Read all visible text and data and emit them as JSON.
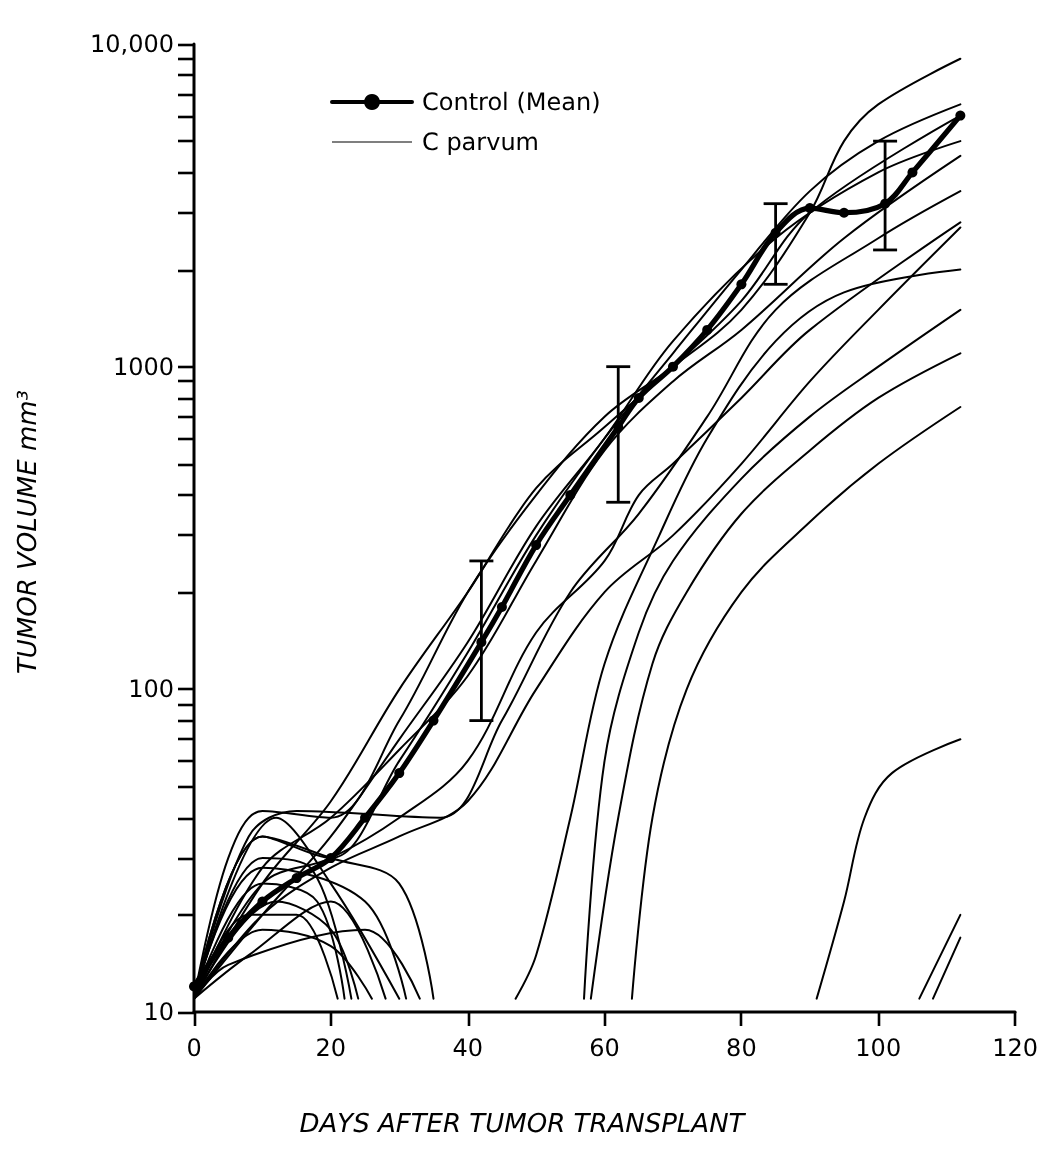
{
  "chart_data": {
    "type": "line",
    "xlabel": "DAYS AFTER TUMOR TRANSPLANT",
    "ylabel": "TUMOR VOLUME mm³",
    "log": "y",
    "grid": false,
    "legend": "top left",
    "xlim": [
      0,
      120
    ],
    "xticks": [
      0,
      20,
      40,
      60,
      80,
      100,
      120
    ],
    "ylim": [
      10,
      10000
    ],
    "yticks": [
      10,
      {
        "value": 20,
        "label": null
      },
      {
        "value": 30,
        "label": null
      },
      {
        "value": 40,
        "label": null
      },
      {
        "value": 50,
        "label": null
      },
      {
        "value": 60,
        "label": null
      },
      {
        "value": 70,
        "label": null
      },
      {
        "value": 80,
        "label": null
      },
      {
        "value": 90,
        "label": null
      },
      100,
      {
        "value": 200,
        "label": null
      },
      {
        "value": 300,
        "label": null
      },
      {
        "value": 400,
        "label": null
      },
      {
        "value": 500,
        "label": null
      },
      {
        "value": 600,
        "label": null
      },
      {
        "value": 700,
        "label": null
      },
      {
        "value": 800,
        "label": null
      },
      {
        "value": 900,
        "label": null
      },
      1000,
      {
        "value": 2000,
        "label": null
      },
      {
        "value": 3000,
        "label": null
      },
      {
        "value": 4000,
        "label": null
      },
      {
        "value": 5000,
        "label": null
      },
      {
        "value": 6000,
        "label": null
      },
      {
        "value": 7000,
        "label": null
      },
      {
        "value": 8000,
        "label": null
      },
      {
        "value": 9000,
        "label": null
      },
      {
        "value": 10000,
        "label": "10,000"
      }
    ],
    "series": [
      {
        "name": "Control (Mean)",
        "color": "#000000",
        "marker": "circle",
        "x": [
          0,
          5,
          10,
          15,
          20,
          25,
          30,
          35,
          42,
          45,
          50,
          55,
          62,
          65,
          70,
          75,
          80,
          85,
          90,
          95,
          101,
          105,
          112
        ],
        "values": [
          12,
          17,
          22,
          26,
          30,
          40,
          55,
          80,
          140,
          180,
          280,
          400,
          650,
          800,
          1000,
          1300,
          1800,
          2600,
          3100,
          3000,
          3200,
          4000,
          6000
        ],
        "errors": [
          null,
          null,
          null,
          null,
          null,
          null,
          null,
          null,
          [
            80,
            250
          ],
          null,
          null,
          null,
          [
            380,
            1000
          ],
          null,
          null,
          null,
          null,
          [
            1800,
            3200
          ],
          null,
          null,
          [
            2300,
            5000
          ],
          null,
          null
        ]
      },
      {
        "name": "C parvum",
        "color": "#000000",
        "marker": "none",
        "x": [
          0,
          5,
          10,
          20,
          30,
          40,
          50,
          60,
          70,
          80,
          90,
          95,
          100,
          112
        ],
        "values": [
          11,
          30,
          42,
          40,
          80,
          200,
          400,
          700,
          1000,
          1500,
          3000,
          5000,
          6500,
          9000
        ]
      },
      {
        "color": "#000000",
        "marker": "none",
        "x": [
          0,
          10,
          20,
          30,
          40,
          50,
          60,
          70,
          80,
          90,
          100,
          112
        ],
        "values": [
          11,
          35,
          30,
          60,
          130,
          300,
          600,
          1100,
          2000,
          3500,
          5000,
          6500
        ]
      },
      {
        "color": "#000000",
        "marker": "none",
        "x": [
          0,
          10,
          20,
          30,
          40,
          50,
          60,
          70,
          80,
          90,
          112
        ],
        "values": [
          11,
          25,
          45,
          100,
          200,
          420,
          650,
          1000,
          1600,
          3000,
          6000
        ]
      },
      {
        "color": "#000000",
        "marker": "none",
        "x": [
          0,
          10,
          20,
          30,
          40,
          50,
          60,
          70,
          85,
          100,
          112
        ],
        "values": [
          11,
          20,
          35,
          70,
          140,
          320,
          600,
          1200,
          2500,
          4000,
          5000
        ]
      },
      {
        "color": "#000000",
        "marker": "none",
        "x": [
          0,
          10,
          20,
          30,
          40,
          50,
          60,
          70,
          80,
          95,
          112
        ],
        "values": [
          11,
          28,
          40,
          65,
          110,
          250,
          550,
          900,
          1300,
          2500,
          4500
        ]
      },
      {
        "color": "#000000",
        "marker": "none",
        "x": [
          0,
          8,
          15,
          36,
          45,
          55,
          65,
          75,
          85,
          100,
          112
        ],
        "values": [
          11,
          35,
          42,
          40,
          80,
          200,
          350,
          700,
          1500,
          2500,
          3500
        ]
      },
      {
        "color": "#000000",
        "marker": "none",
        "x": [
          0,
          10,
          20,
          30,
          40,
          50,
          60,
          65,
          70,
          80,
          90,
          112
        ],
        "values": [
          11,
          25,
          30,
          40,
          60,
          150,
          250,
          400,
          500,
          800,
          1300,
          2800
        ]
      },
      {
        "color": "#000000",
        "marker": "none",
        "x": [
          0,
          10,
          20,
          30,
          40,
          50,
          60,
          70,
          80,
          90,
          100,
          112
        ],
        "values": [
          11,
          20,
          28,
          35,
          45,
          100,
          200,
          300,
          500,
          900,
          1500,
          2700
        ]
      },
      {
        "color": "#000000",
        "marker": "none",
        "x": [
          0,
          10,
          18,
          22
        ],
        "values": [
          11,
          25,
          22,
          11
        ]
      },
      {
        "color": "#000000",
        "marker": "none",
        "x": [
          0,
          8,
          15,
          21
        ],
        "values": [
          11,
          20,
          20,
          11
        ]
      },
      {
        "color": "#000000",
        "marker": "none",
        "x": [
          0,
          10,
          17,
          23
        ],
        "values": [
          11,
          30,
          28,
          11
        ]
      },
      {
        "color": "#000000",
        "marker": "none",
        "x": [
          0,
          12,
          20,
          24
        ],
        "values": [
          11,
          22,
          18,
          11
        ]
      },
      {
        "color": "#000000",
        "marker": "none",
        "x": [
          0,
          10,
          20,
          26
        ],
        "values": [
          11,
          18,
          16,
          11
        ]
      },
      {
        "color": "#000000",
        "marker": "none",
        "x": [
          0,
          8,
          20,
          28
        ],
        "values": [
          11,
          15,
          22,
          11
        ]
      },
      {
        "color": "#000000",
        "marker": "none",
        "x": [
          0,
          12,
          20,
          30
        ],
        "values": [
          11,
          40,
          25,
          11
        ]
      },
      {
        "color": "#000000",
        "marker": "none",
        "x": [
          0,
          10,
          25,
          31
        ],
        "values": [
          11,
          28,
          22,
          11
        ]
      },
      {
        "color": "#000000",
        "marker": "none",
        "x": [
          0,
          5,
          25,
          33
        ],
        "values": [
          11,
          14,
          18,
          11
        ]
      },
      {
        "color": "#000000",
        "marker": "none",
        "x": [
          0,
          10,
          20,
          30,
          35
        ],
        "values": [
          11,
          35,
          30,
          25,
          11
        ]
      },
      {
        "color": "#000000",
        "marker": "none",
        "x": [
          47,
          50,
          55,
          60,
          68,
          75,
          85,
          95,
          112
        ],
        "values": [
          11,
          15,
          40,
          120,
          300,
          600,
          1200,
          1700,
          2000
        ]
      },
      {
        "color": "#000000",
        "marker": "none",
        "x": [
          57,
          60,
          65,
          70,
          80,
          90,
          100,
          112
        ],
        "values": [
          11,
          60,
          150,
          250,
          450,
          700,
          1000,
          1500
        ]
      },
      {
        "color": "#000000",
        "marker": "none",
        "x": [
          58,
          62,
          67,
          72,
          80,
          90,
          100,
          112
        ],
        "values": [
          11,
          40,
          120,
          200,
          350,
          550,
          800,
          1100
        ]
      },
      {
        "color": "#000000",
        "marker": "none",
        "x": [
          64,
          67,
          72,
          80,
          90,
          100,
          112
        ],
        "values": [
          11,
          40,
          100,
          200,
          330,
          500,
          750
        ]
      },
      {
        "color": "#000000",
        "marker": "none",
        "x": [
          91,
          95,
          98,
          102,
          112
        ],
        "values": [
          11,
          22,
          40,
          55,
          70
        ]
      },
      {
        "color": "#000000",
        "marker": "none",
        "x": [
          106,
          112
        ],
        "values": [
          11,
          20
        ]
      },
      {
        "color": "#000000",
        "marker": "none",
        "x": [
          108,
          112
        ],
        "values": [
          11,
          17
        ]
      }
    ]
  }
}
